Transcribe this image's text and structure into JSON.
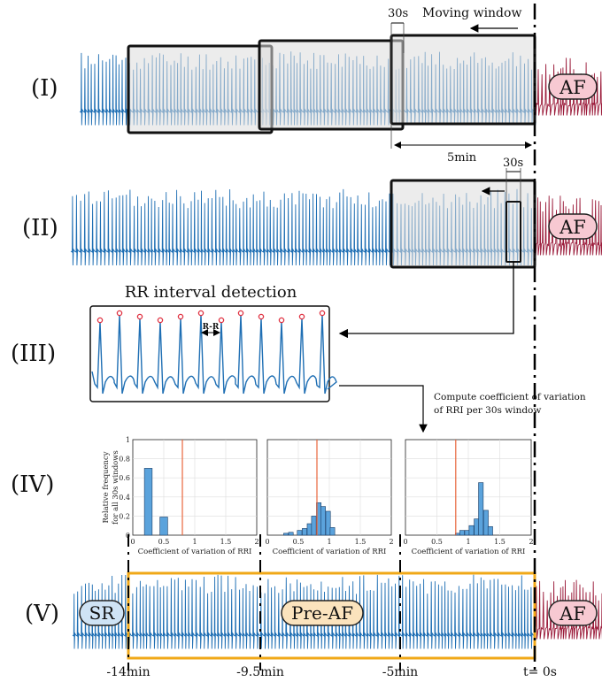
{
  "rows": {
    "I": "(I)",
    "II": "(II)",
    "III": "(III)",
    "IV": "(IV)",
    "V": "(V)"
  },
  "row1": {
    "window_30s": "30s",
    "moving_window": "Moving window",
    "span_5min": "5min",
    "af_badge": "AF"
  },
  "row2": {
    "window_30s": "30s",
    "af_badge": "AF"
  },
  "row3": {
    "title": "RR interval detection",
    "rr_label": "R-R"
  },
  "compute_note": {
    "line1": "Compute coefficient of variation",
    "line2": "of RRI per 30s window"
  },
  "row5": {
    "sr_badge": "SR",
    "preaf_badge": "Pre-AF",
    "af_badge": "AF",
    "time_labels": [
      "-14min",
      "-9.5min",
      "-5min",
      "t= 0s"
    ]
  },
  "colors": {
    "ecg_sr": "#1f6fb4",
    "ecg_af": "#9b1b3a",
    "preaf_box": "#f0a818",
    "hist_bar": "#5ba3dc",
    "threshold": "#e8663c",
    "af_badge_fill": "#f7c9d2",
    "sr_badge_fill": "#cfe3f5",
    "preaf_badge_fill": "#fbe3bd",
    "window_fill": "#dcdcdc"
  },
  "chart_data": [
    {
      "type": "bar",
      "ylabel": "Relative frequency\nfor all 30s windows",
      "xlabel": "Coefficient of variation of RRI",
      "xlim": [
        0,
        2
      ],
      "ylim": [
        0,
        1
      ],
      "xticks": [
        "0",
        "0.5",
        "1",
        "1.5",
        "2"
      ],
      "yticks": [
        "0",
        "0.2",
        "0.4",
        "0.6",
        "0.8",
        "1"
      ],
      "threshold": 0.8,
      "bin_width": 0.125,
      "bins": [
        0.25,
        0.5
      ],
      "values": [
        0.7,
        0.19
      ]
    },
    {
      "type": "bar",
      "xlabel": "Coefficient of variation of RRI",
      "xlim": [
        0,
        2
      ],
      "ylim": [
        0,
        1
      ],
      "xticks": [
        "0",
        "0.5",
        "1",
        "1.5",
        "2"
      ],
      "threshold": 0.8,
      "bin_width": 0.075,
      "bins": [
        0.3,
        0.38,
        0.52,
        0.6,
        0.68,
        0.75,
        0.83,
        0.9,
        0.98,
        1.05
      ],
      "values": [
        0.02,
        0.03,
        0.05,
        0.07,
        0.12,
        0.2,
        0.34,
        0.3,
        0.25,
        0.08
      ]
    },
    {
      "type": "bar",
      "xlabel": "Coefficient of variation of RRI",
      "xlim": [
        0,
        2
      ],
      "ylim": [
        0,
        1
      ],
      "xticks": [
        "0",
        "0.5",
        "1",
        "1.5",
        "2"
      ],
      "threshold": 0.8,
      "bin_width": 0.075,
      "bins": [
        0.83,
        0.9,
        0.98,
        1.05,
        1.13,
        1.2,
        1.28,
        1.35
      ],
      "values": [
        0.02,
        0.05,
        0.05,
        0.1,
        0.17,
        0.55,
        0.26,
        0.09
      ]
    }
  ]
}
